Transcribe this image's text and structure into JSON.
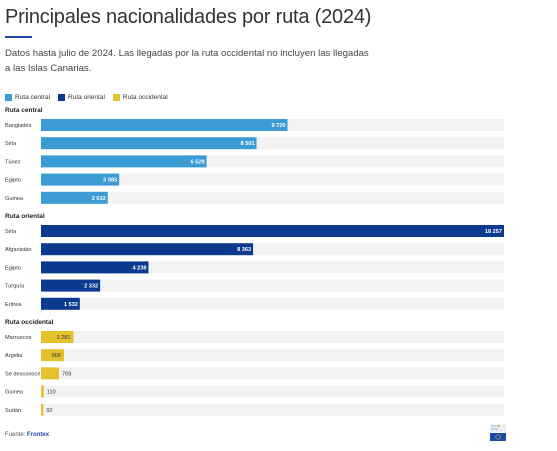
{
  "header": {
    "title": "Principales nacionalidades por ruta (2024)",
    "subtitle": "Datos hasta julio de 2024. Las llegadas por la ruta occidental no incluyen las llegadas a las Islas Canarias."
  },
  "colors": {
    "central": "#3a9bd5",
    "oriental": "#0c3a8f",
    "occidental": "#e6c12e",
    "track": "#f2f2f2"
  },
  "chart_data": {
    "type": "bar",
    "orientation": "horizontal",
    "xlim": [
      0,
      18257
    ],
    "legend": [
      "Ruta central",
      "Ruta oriental",
      "Ruta occidental"
    ],
    "legend_position": "top-left",
    "groups": [
      {
        "name": "Ruta central",
        "color_key": "central",
        "label_color": "#ffffff",
        "categories": [
          "Bangladés",
          "Siria",
          "Túnez",
          "Egipto",
          "Guinea"
        ],
        "values": [
          9720,
          8501,
          6529,
          3083,
          2632
        ],
        "labels": [
          "9 720",
          "8 501",
          "6 529",
          "3 083",
          "2 632"
        ]
      },
      {
        "name": "Ruta oriental",
        "color_key": "oriental",
        "label_color": "#ffffff",
        "categories": [
          "Siria",
          "Afganistán",
          "Egipto",
          "Turquía",
          "Eritrea"
        ],
        "values": [
          18257,
          8363,
          4238,
          2332,
          1532
        ],
        "labels": [
          "18 257",
          "8 363",
          "4 238",
          "2 332",
          "1 532"
        ]
      },
      {
        "name": "Ruta occidental",
        "color_key": "occidental",
        "label_color": "#333333",
        "categories": [
          "Marruecos",
          "Argelia",
          "Se desconoce",
          "Guinea",
          "Sudán"
        ],
        "values": [
          1281,
          906,
          709,
          110,
          92
        ],
        "labels": [
          "1 281",
          "906",
          "709",
          "110",
          "92"
        ]
      }
    ]
  },
  "footer": {
    "source_label": "Fuente:",
    "source_name": "Frontex"
  }
}
